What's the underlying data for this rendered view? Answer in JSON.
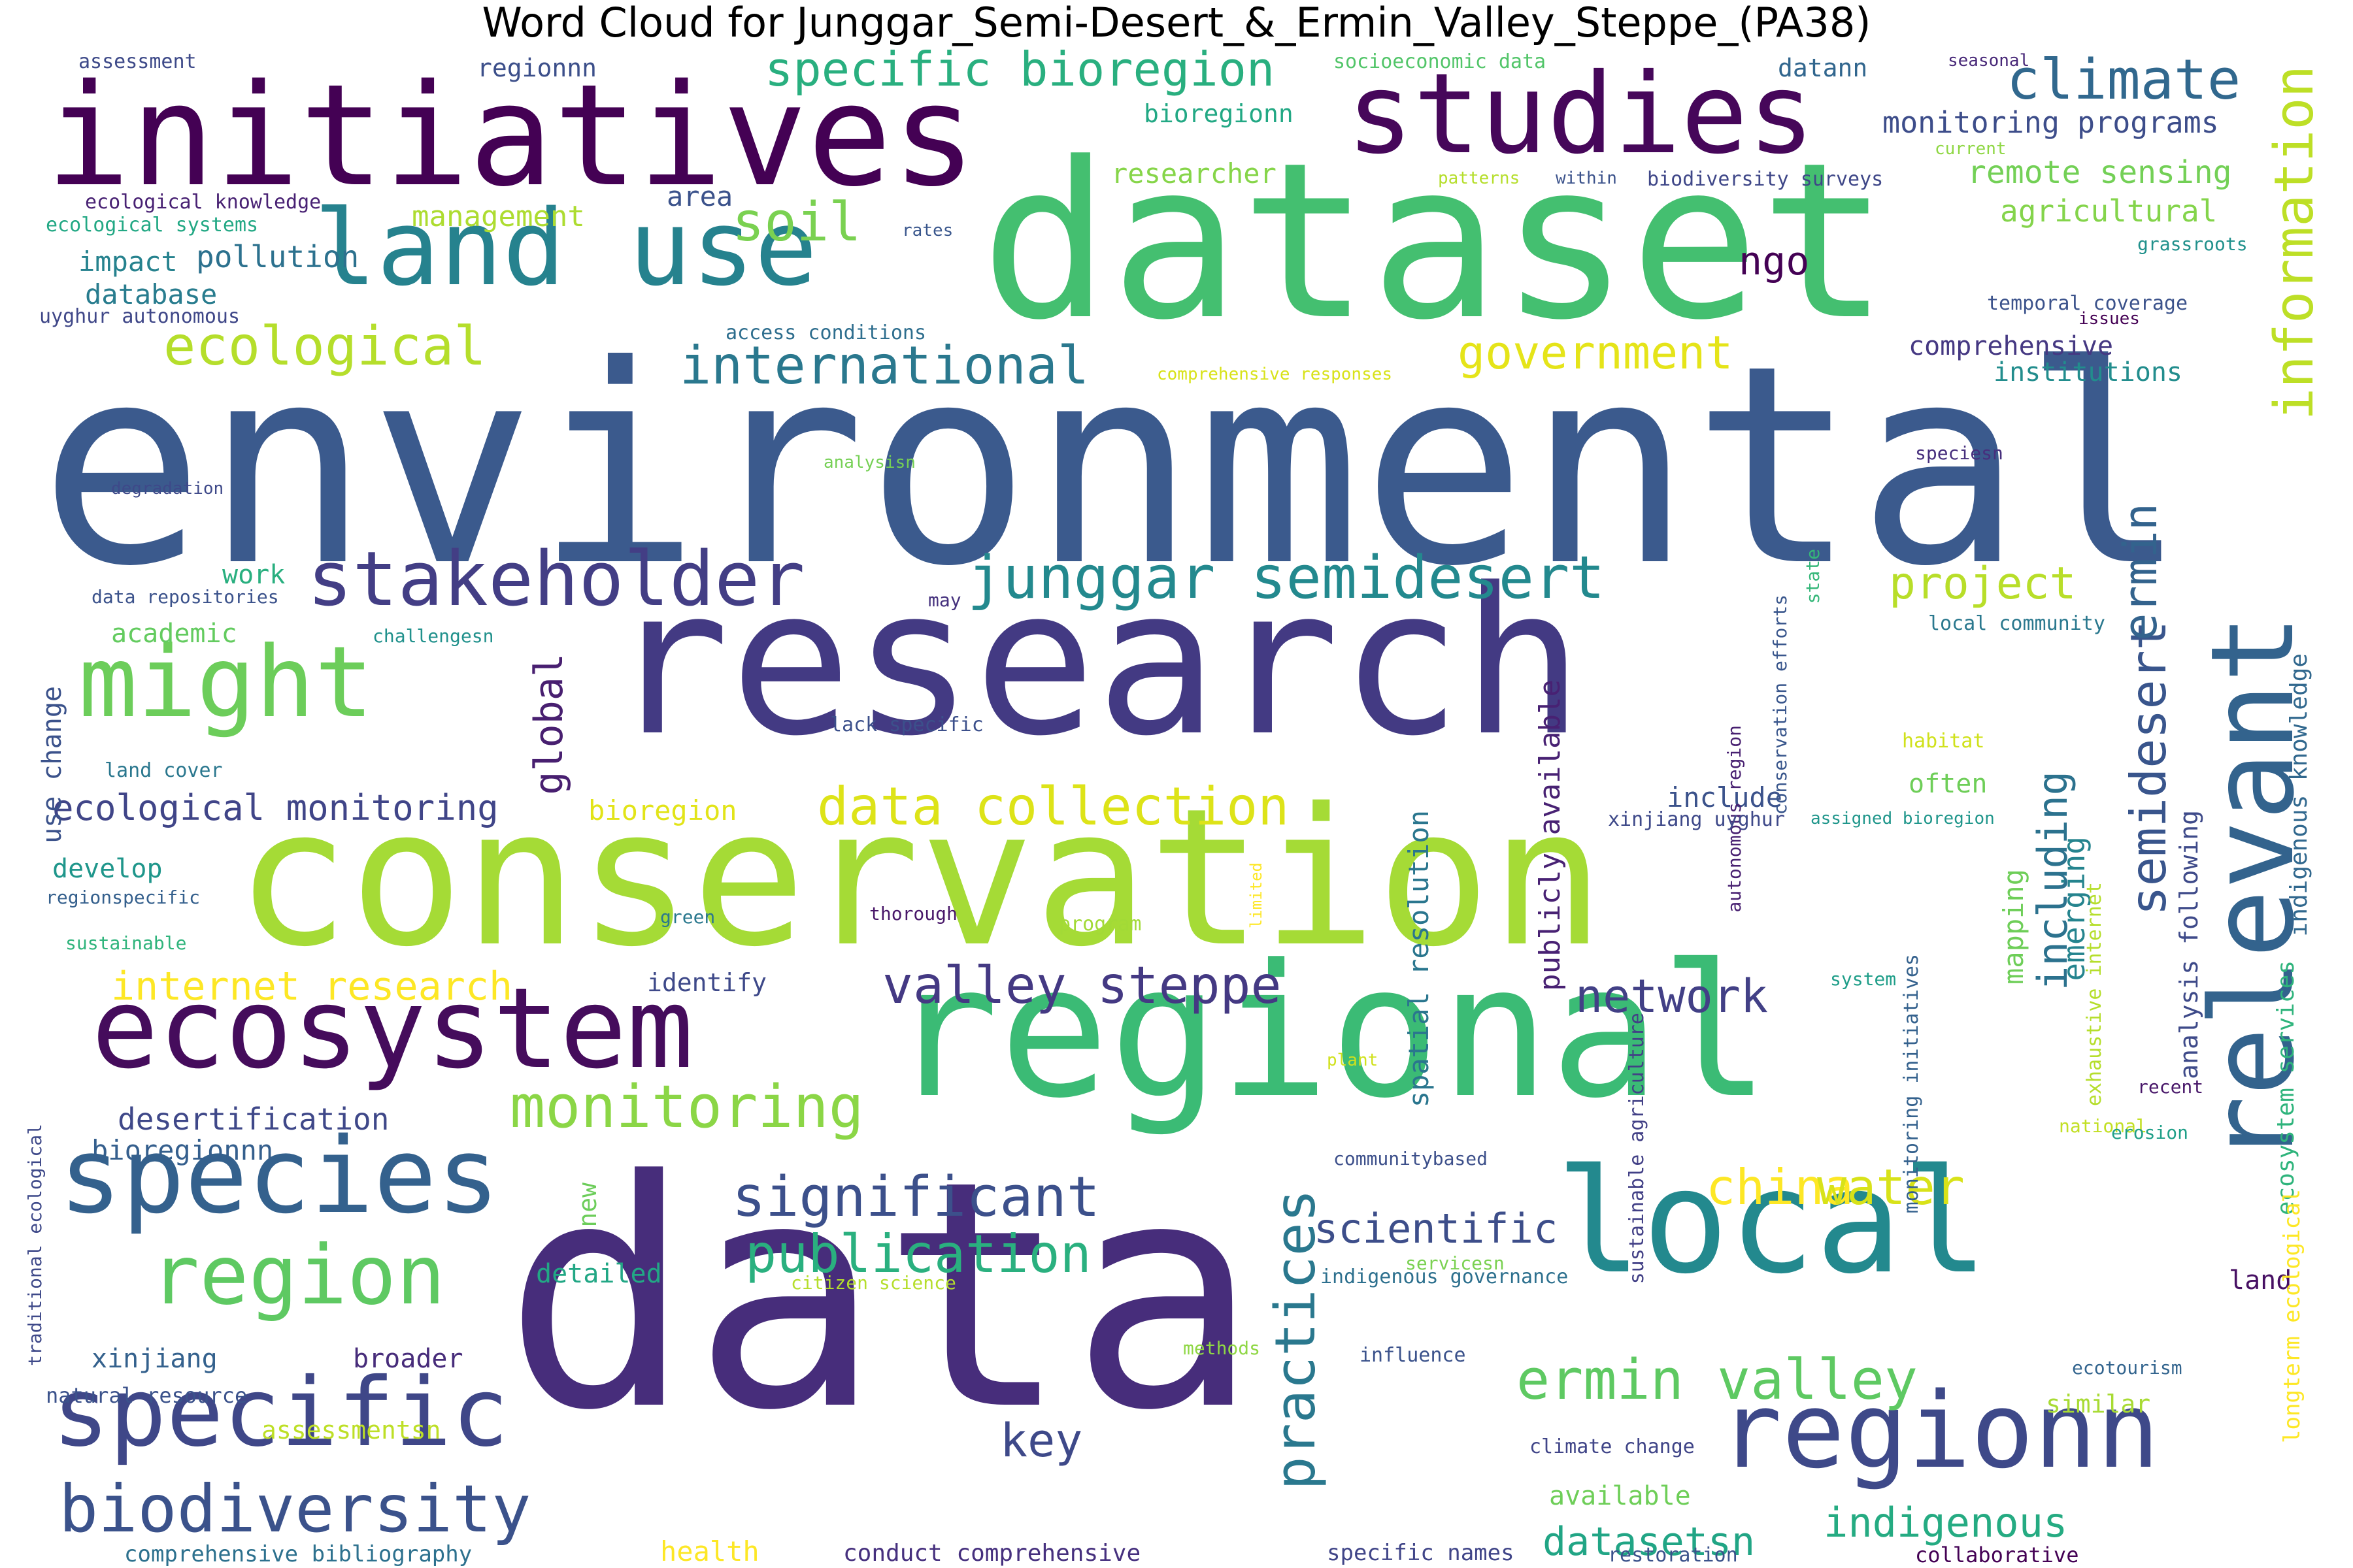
{
  "title": "Word Cloud for Junggar_Semi-Desert_&_Ermin_Valley_Steppe_(PA38)",
  "words": [
    {
      "text": "environmental",
      "color": "#3b5a8d"
    },
    {
      "text": "data",
      "color": "#472d7b"
    },
    {
      "text": "dataset",
      "color": "#44bf70"
    },
    {
      "text": "research",
      "color": "#433a83"
    },
    {
      "text": "conservation",
      "color": "#a5db36"
    },
    {
      "text": "regional",
      "color": "#3bbb75"
    },
    {
      "text": "initiatives",
      "color": "#440154"
    },
    {
      "text": "local",
      "color": "#23898e"
    },
    {
      "text": "studies",
      "color": "#46075a"
    },
    {
      "text": "relevant",
      "color": "#33638d"
    },
    {
      "text": "ecosystem",
      "color": "#450c5c"
    },
    {
      "text": "species",
      "color": "#34618d"
    },
    {
      "text": "regionn",
      "color": "#3e4989"
    },
    {
      "text": "land use",
      "color": "#26828e"
    },
    {
      "text": "might",
      "color": "#6ccd5a"
    },
    {
      "text": "specific",
      "color": "#3f4788"
    },
    {
      "text": "region",
      "color": "#5ec962"
    },
    {
      "text": "stakeholder",
      "color": "#433e85"
    },
    {
      "text": "information",
      "color": "#bddf26"
    },
    {
      "text": "junggar semidesert",
      "color": "#23898e"
    },
    {
      "text": "biodiversity",
      "color": "#3b528b"
    },
    {
      "text": "monitoring",
      "color": "#8bd646"
    },
    {
      "text": "valley steppe",
      "color": "#443983"
    },
    {
      "text": "specific bioregion",
      "color": "#29af7f"
    },
    {
      "text": "climate",
      "color": "#31688e"
    },
    {
      "text": "ermin valley",
      "color": "#5ec962"
    },
    {
      "text": "significant",
      "color": "#3c508b"
    },
    {
      "text": "publication",
      "color": "#2ab07f"
    },
    {
      "text": "data collection",
      "color": "#dde318"
    },
    {
      "text": "practices",
      "color": "#2a788e"
    },
    {
      "text": "semidesert",
      "color": "#39558c"
    },
    {
      "text": "ecological",
      "color": "#b5de2b"
    },
    {
      "text": "international",
      "color": "#2a788e"
    },
    {
      "text": "government",
      "color": "#e5e419"
    },
    {
      "text": "china",
      "color": "#fde725"
    },
    {
      "text": "water",
      "color": "#d8e219"
    },
    {
      "text": "network",
      "color": "#424086"
    },
    {
      "text": "scientific",
      "color": "#3d4e8a"
    },
    {
      "text": "including",
      "color": "#2c728e"
    },
    {
      "text": "soil",
      "color": "#7ad151"
    },
    {
      "text": "ermin",
      "color": "#33638d"
    },
    {
      "text": "global",
      "color": "#481f70"
    },
    {
      "text": "project",
      "color": "#b8de29"
    },
    {
      "text": "datasetsn",
      "color": "#21a585"
    },
    {
      "text": "indigenous",
      "color": "#25ab82"
    },
    {
      "text": "key",
      "color": "#3e4989"
    },
    {
      "text": "ngo",
      "color": "#440154"
    },
    {
      "text": "remote sensing",
      "color": "#73d056"
    },
    {
      "text": "monitoring programs",
      "color": "#3d4d8a"
    },
    {
      "text": "agricultural",
      "color": "#84d44b"
    },
    {
      "text": "comprehensive",
      "color": "#453882"
    },
    {
      "text": "institutions",
      "color": "#228d8d"
    },
    {
      "text": "internet research",
      "color": "#fde725"
    },
    {
      "text": "ecological monitoring",
      "color": "#404588"
    },
    {
      "text": "desertification",
      "color": "#3f4889"
    },
    {
      "text": "bioregionnn",
      "color": "#355f8d"
    },
    {
      "text": "emerging",
      "color": "#25848e"
    },
    {
      "text": "analysis following",
      "color": "#3e4a89"
    },
    {
      "text": "mapping",
      "color": "#6ece58"
    },
    {
      "text": "spatial resolution",
      "color": "#2a768e"
    },
    {
      "text": "publicly available",
      "color": "#482173"
    },
    {
      "text": "pollution",
      "color": "#2c718e"
    },
    {
      "text": "impact",
      "color": "#26828e"
    },
    {
      "text": "database",
      "color": "#287c8e"
    },
    {
      "text": "management",
      "color": "#addc30"
    },
    {
      "text": "area",
      "color": "#3b528b"
    },
    {
      "text": "researcher",
      "color": "#86d549"
    },
    {
      "text": "bioregionn",
      "color": "#22a884"
    },
    {
      "text": "regionnn",
      "color": "#3c4f8a"
    },
    {
      "text": "datann",
      "color": "#31668e"
    },
    {
      "text": "work",
      "color": "#29af7f"
    },
    {
      "text": "academic",
      "color": "#63cb5f"
    },
    {
      "text": "develop",
      "color": "#1f968b"
    },
    {
      "text": "bioregion",
      "color": "#e2e418"
    },
    {
      "text": "identify",
      "color": "#3e4989"
    },
    {
      "text": "include",
      "color": "#3b528b"
    },
    {
      "text": "often",
      "color": "#6ece58"
    },
    {
      "text": "detailed",
      "color": "#22a785"
    },
    {
      "text": "new",
      "color": "#6ccd5a"
    },
    {
      "text": "xinjiang",
      "color": "#34618d"
    },
    {
      "text": "broader",
      "color": "#472c7a"
    },
    {
      "text": "natural resource",
      "color": "#3b528b"
    },
    {
      "text": "assessmentsn",
      "color": "#bddf26"
    },
    {
      "text": "available",
      "color": "#6ece58"
    },
    {
      "text": "similar",
      "color": "#a8db34"
    },
    {
      "text": "land",
      "color": "#471063"
    },
    {
      "text": "health",
      "color": "#fde725"
    },
    {
      "text": "conduct comprehensive",
      "color": "#46307e"
    },
    {
      "text": "specific names",
      "color": "#404588"
    },
    {
      "text": "restoration",
      "color": "#3b528b"
    },
    {
      "text": "collaborative",
      "color": "#440154"
    },
    {
      "text": "comprehensive bibliography",
      "color": "#2d718e"
    },
    {
      "text": "use change",
      "color": "#3b528b"
    },
    {
      "text": "indigenous knowledge",
      "color": "#31688e"
    },
    {
      "text": "ecosystem services",
      "color": "#2fb47c"
    },
    {
      "text": "longterm ecological",
      "color": "#fde725"
    },
    {
      "text": "exhaustive internet",
      "color": "#b5de2b"
    },
    {
      "text": "monitoring initiatives",
      "color": "#34618d"
    },
    {
      "text": "sustainable agriculture",
      "color": "#424086"
    },
    {
      "text": "autonomous region",
      "color": "#482071"
    },
    {
      "text": "conservation efforts",
      "color": "#39568c"
    },
    {
      "text": "state",
      "color": "#35b779"
    },
    {
      "text": "traditional ecological",
      "color": "#3e4989"
    },
    {
      "text": "limited",
      "color": "#fde725"
    },
    {
      "text": "assessment",
      "color": "#3e4a89"
    },
    {
      "text": "socioeconomic data",
      "color": "#52c569"
    },
    {
      "text": "seasonal",
      "color": "#482878"
    },
    {
      "text": "current",
      "color": "#8fd744"
    },
    {
      "text": "patterns",
      "color": "#b5de2b"
    },
    {
      "text": "within",
      "color": "#3b528b"
    },
    {
      "text": "biodiversity surveys",
      "color": "#3f4788"
    },
    {
      "text": "ecological knowledge",
      "color": "#482173"
    },
    {
      "text": "ecological systems",
      "color": "#22a884"
    },
    {
      "text": "rates",
      "color": "#39568c"
    },
    {
      "text": "grassroots",
      "color": "#21918c"
    },
    {
      "text": "temporal coverage",
      "color": "#3b528b"
    },
    {
      "text": "issues",
      "color": "#440154"
    },
    {
      "text": "uyghur autonomous",
      "color": "#3f4788"
    },
    {
      "text": "access conditions",
      "color": "#2e6e8e"
    },
    {
      "text": "comprehensive responses",
      "color": "#d8e219"
    },
    {
      "text": "degradation",
      "color": "#3e4989"
    },
    {
      "text": "analysisn",
      "color": "#75d054"
    },
    {
      "text": "speciesn",
      "color": "#472f7d"
    },
    {
      "text": "data repositories",
      "color": "#3b528b"
    },
    {
      "text": "challengesn",
      "color": "#21918c"
    },
    {
      "text": "may",
      "color": "#46327e"
    },
    {
      "text": "local community",
      "color": "#2a788e"
    },
    {
      "text": "lack specific",
      "color": "#3c508b"
    },
    {
      "text": "land cover",
      "color": "#2a778e"
    },
    {
      "text": "habitat",
      "color": "#d0e11c"
    },
    {
      "text": "xinjiang uyghur",
      "color": "#3e4989"
    },
    {
      "text": "assigned bioregion",
      "color": "#1f968b"
    },
    {
      "text": "regionspecific",
      "color": "#35608d"
    },
    {
      "text": "sustainable",
      "color": "#2fb47c"
    },
    {
      "text": "green",
      "color": "#2a788e"
    },
    {
      "text": "thorough",
      "color": "#481769"
    },
    {
      "text": "program",
      "color": "#a2da37"
    },
    {
      "text": "system",
      "color": "#1f9e89"
    },
    {
      "text": "plant",
      "color": "#d0e11c"
    },
    {
      "text": "recent",
      "color": "#481769"
    },
    {
      "text": "national",
      "color": "#c2df23"
    },
    {
      "text": "erosion",
      "color": "#1f9f88"
    },
    {
      "text": "communitybased",
      "color": "#3c4f8a"
    },
    {
      "text": "servicesn",
      "color": "#7ad151"
    },
    {
      "text": "indigenous governance",
      "color": "#2d708e"
    },
    {
      "text": "citizen science",
      "color": "#b5de2b"
    },
    {
      "text": "methods",
      "color": "#8fd744"
    },
    {
      "text": "influence",
      "color": "#3b528b"
    },
    {
      "text": "climate change",
      "color": "#404588"
    },
    {
      "text": "ecotourism",
      "color": "#32648e"
    }
  ]
}
